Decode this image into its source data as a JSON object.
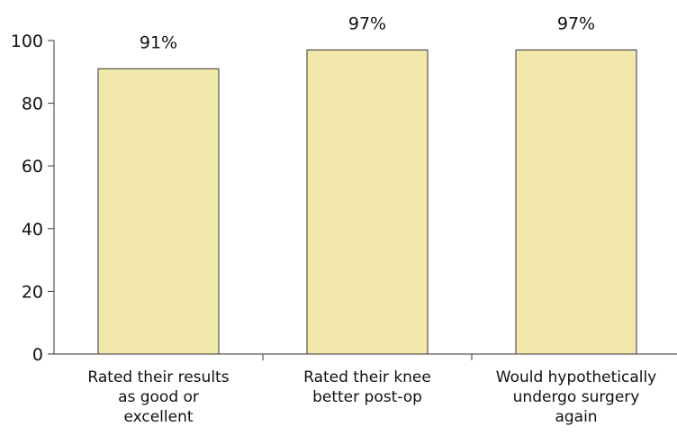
{
  "chart_data": {
    "type": "bar",
    "categories": [
      [
        "Rated their results",
        "as good or",
        "excellent"
      ],
      [
        "Rated their knee",
        "better post-op"
      ],
      [
        "Would hypothetically",
        "undergo surgery",
        "again"
      ]
    ],
    "values": [
      91,
      97,
      97
    ],
    "data_labels": [
      "91%",
      "97%",
      "97%"
    ],
    "yticks": [
      "0",
      "20",
      "40",
      "60",
      "80",
      "100"
    ],
    "ylim": [
      0,
      100
    ],
    "bar_color": "#f3e8ac",
    "grid": false
  }
}
